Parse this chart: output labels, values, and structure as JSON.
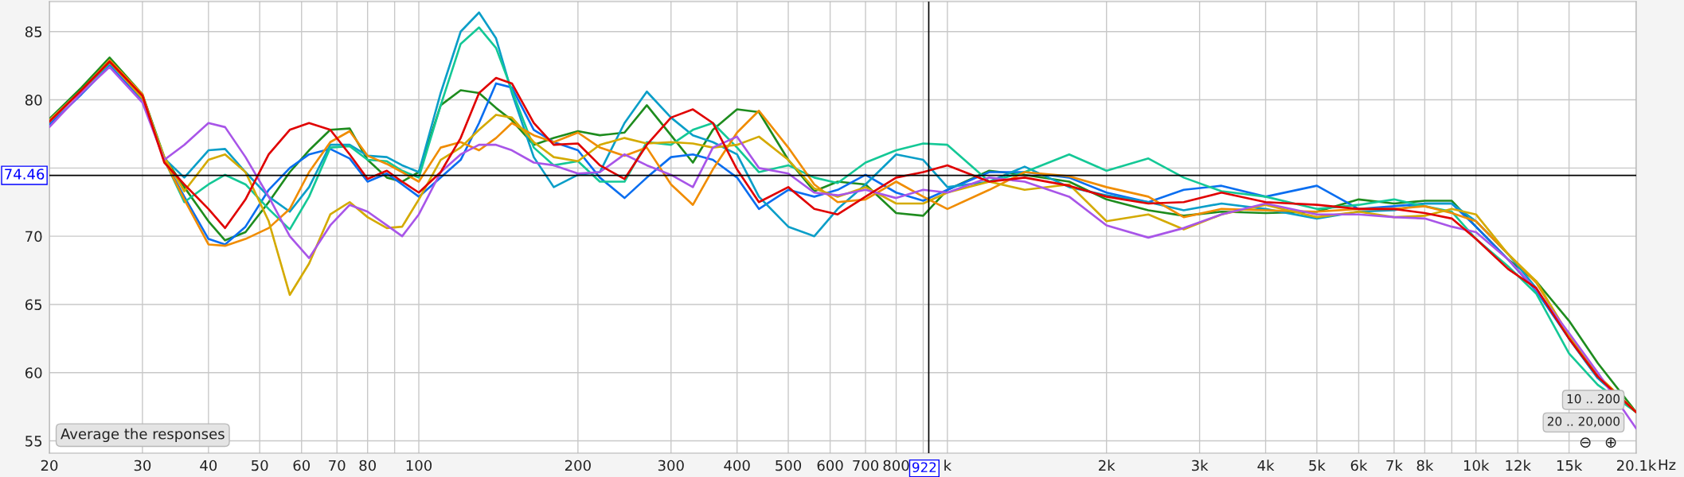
{
  "chart_data": {
    "type": "line",
    "x": [
      20,
      23,
      26,
      30,
      33,
      36,
      40,
      43,
      47,
      52,
      57,
      62,
      68,
      74,
      80,
      87,
      93,
      100,
      110,
      120,
      130,
      140,
      150,
      165,
      180,
      200,
      220,
      245,
      270,
      300,
      330,
      360,
      400,
      440,
      500,
      560,
      620,
      700,
      800,
      900,
      1000,
      1200,
      1400,
      1700,
      2000,
      2400,
      2800,
      3300,
      4000,
      5000,
      6000,
      7000,
      8000,
      9000,
      10000,
      11500,
      13000,
      15000,
      17000,
      20100
    ],
    "series": [
      {
        "color": "#e00000",
        "values": [
          78.4,
          80.7,
          82.8,
          80.3,
          75.4,
          73.8,
          72.0,
          70.6,
          72.7,
          76.0,
          77.8,
          78.3,
          77.8,
          76.0,
          74.2,
          74.8,
          74.0,
          73.2,
          74.7,
          77.2,
          80.5,
          81.6,
          81.2,
          78.3,
          76.7,
          76.8,
          75.2,
          74.2,
          76.7,
          78.7,
          79.3,
          78.3,
          74.9,
          72.5,
          73.6,
          72.0,
          71.6,
          72.9,
          74.3,
          74.7,
          75.2,
          74.0,
          74.3,
          73.7,
          72.9,
          72.4,
          72.5,
          73.2,
          72.5,
          72.3,
          72.0,
          72.0,
          71.7,
          71.3,
          69.8,
          67.6,
          66.2,
          62.5,
          59.7,
          57.1
        ]
      },
      {
        "color": "#1e8c1e",
        "values": [
          78.6,
          80.9,
          83.1,
          80.4,
          75.8,
          73.6,
          71.1,
          69.7,
          70.3,
          72.5,
          74.7,
          76.3,
          77.8,
          77.9,
          75.6,
          74.3,
          74.0,
          74.7,
          79.6,
          80.7,
          80.5,
          79.4,
          78.5,
          76.7,
          77.2,
          77.7,
          77.4,
          77.6,
          79.6,
          77.4,
          75.4,
          77.8,
          79.3,
          79.1,
          75.6,
          73.3,
          74.0,
          73.8,
          71.7,
          71.5,
          73.4,
          74.8,
          74.5,
          74.0,
          72.7,
          71.9,
          71.5,
          71.8,
          71.7,
          71.8,
          72.7,
          72.4,
          72.6,
          72.6,
          70.7,
          68.3,
          66.7,
          63.8,
          60.7,
          57.1
        ]
      },
      {
        "color": "#0a6ef0",
        "values": [
          78.2,
          80.4,
          82.5,
          80.0,
          75.6,
          72.9,
          69.8,
          69.4,
          70.7,
          73.4,
          75.0,
          76.0,
          76.4,
          75.7,
          74.0,
          74.6,
          73.8,
          72.9,
          74.3,
          75.6,
          78.3,
          81.2,
          80.9,
          77.8,
          76.9,
          76.3,
          74.3,
          72.8,
          74.3,
          75.8,
          76.0,
          75.6,
          74.3,
          72.0,
          73.4,
          72.9,
          73.4,
          74.5,
          73.2,
          72.6,
          73.4,
          74.7,
          74.7,
          74.3,
          73.2,
          72.5,
          73.4,
          73.7,
          72.9,
          73.7,
          72.0,
          72.2,
          72.4,
          72.4,
          70.7,
          68.3,
          66.0,
          62.5,
          59.6,
          57.1
        ]
      },
      {
        "color": "#0a9ec8",
        "values": [
          78.5,
          80.7,
          82.7,
          80.3,
          75.7,
          74.3,
          76.3,
          76.4,
          74.7,
          72.9,
          71.8,
          73.6,
          76.7,
          76.7,
          75.9,
          75.8,
          75.2,
          74.7,
          80.5,
          85.0,
          86.4,
          84.5,
          80.5,
          75.8,
          73.6,
          74.5,
          74.7,
          78.3,
          80.6,
          78.7,
          77.4,
          76.9,
          76.0,
          72.9,
          70.7,
          70.0,
          72.0,
          73.8,
          76.0,
          75.6,
          73.6,
          74.0,
          75.1,
          73.6,
          73.0,
          72.5,
          71.9,
          72.4,
          72.0,
          71.3,
          71.8,
          71.9,
          72.4,
          72.4,
          71.1,
          68.7,
          66.2,
          62.5,
          59.6,
          57.1
        ]
      },
      {
        "color": "#14c896",
        "values": [
          78.5,
          80.7,
          82.7,
          80.3,
          75.6,
          72.5,
          73.8,
          74.5,
          73.8,
          72.0,
          70.5,
          72.9,
          76.5,
          76.6,
          75.6,
          75.5,
          74.8,
          74.3,
          79.6,
          84.1,
          85.3,
          83.8,
          80.7,
          76.5,
          75.2,
          75.5,
          74.0,
          74.0,
          76.9,
          76.7,
          77.8,
          78.3,
          76.5,
          74.7,
          75.2,
          74.3,
          73.9,
          75.4,
          76.3,
          76.8,
          76.7,
          74.0,
          74.7,
          76.0,
          74.8,
          75.7,
          74.3,
          73.3,
          72.9,
          72.0,
          72.3,
          72.7,
          72.2,
          71.8,
          69.8,
          67.8,
          65.8,
          61.4,
          59.1,
          57.1
        ]
      },
      {
        "color": "#f08c00",
        "values": [
          78.5,
          80.7,
          82.9,
          80.4,
          75.6,
          72.7,
          69.4,
          69.3,
          69.8,
          70.6,
          72.0,
          74.7,
          76.9,
          77.7,
          75.9,
          75.3,
          74.7,
          74.0,
          76.5,
          76.9,
          76.3,
          77.2,
          78.3,
          77.4,
          76.9,
          77.6,
          76.5,
          75.9,
          76.5,
          73.8,
          72.3,
          74.9,
          77.6,
          79.2,
          76.5,
          73.8,
          72.5,
          72.7,
          74.0,
          72.9,
          72.0,
          73.4,
          74.7,
          74.4,
          73.6,
          72.9,
          71.4,
          72.0,
          71.9,
          71.8,
          72.0,
          72.0,
          72.2,
          71.7,
          71.1,
          68.7,
          66.6,
          62.7,
          59.8,
          57.1
        ]
      },
      {
        "color": "#d4aa00",
        "values": [
          78.4,
          80.7,
          82.8,
          80.1,
          75.8,
          73.3,
          75.6,
          76.0,
          74.7,
          71.1,
          65.7,
          68.0,
          71.6,
          72.5,
          71.4,
          70.6,
          70.7,
          72.7,
          75.6,
          76.5,
          77.8,
          78.9,
          78.7,
          76.9,
          75.8,
          75.5,
          76.7,
          77.2,
          76.8,
          76.9,
          76.8,
          76.5,
          76.7,
          77.3,
          75.6,
          73.5,
          72.9,
          73.6,
          72.4,
          72.4,
          73.2,
          74.0,
          73.4,
          73.8,
          71.1,
          71.6,
          70.5,
          71.6,
          72.3,
          71.4,
          71.8,
          71.4,
          71.5,
          72.0,
          71.6,
          68.7,
          66.7,
          62.7,
          59.8,
          57.1
        ]
      },
      {
        "color": "#a855e8",
        "values": [
          78.0,
          80.5,
          82.4,
          79.8,
          75.6,
          76.7,
          78.3,
          78.0,
          75.8,
          72.9,
          70.0,
          68.4,
          70.8,
          72.3,
          71.8,
          70.8,
          70.0,
          71.6,
          74.7,
          76.0,
          76.7,
          76.7,
          76.3,
          75.4,
          75.2,
          74.6,
          74.7,
          76.0,
          75.2,
          74.5,
          73.6,
          76.5,
          77.3,
          75.0,
          74.6,
          73.2,
          73.0,
          73.4,
          72.8,
          73.4,
          73.2,
          74.3,
          74.0,
          72.9,
          70.8,
          69.9,
          70.6,
          71.6,
          72.4,
          71.6,
          71.6,
          71.4,
          71.3,
          70.7,
          70.3,
          68.3,
          66.1,
          62.9,
          60.0,
          55.9
        ]
      }
    ],
    "log": "x",
    "xlim": [
      20,
      20100
    ],
    "xticks": [
      20,
      30,
      40,
      50,
      60,
      70,
      80,
      {
        "value": 90,
        "label": null
      },
      100,
      200,
      300,
      400,
      500,
      600,
      700,
      800,
      {
        "value": 900,
        "label": null
      },
      {
        "value": 1000,
        "label": "k"
      },
      {
        "value": 2000,
        "label": "2k"
      },
      {
        "value": 3000,
        "label": "3k"
      },
      {
        "value": 4000,
        "label": "4k"
      },
      {
        "value": 5000,
        "label": "5k"
      },
      {
        "value": 6000,
        "label": "6k"
      },
      {
        "value": 7000,
        "label": "7k"
      },
      {
        "value": 8000,
        "label": "8k"
      },
      {
        "value": 9000,
        "label": null
      },
      {
        "value": 10000,
        "label": "10k"
      },
      {
        "value": 12000,
        "label": "12k"
      },
      {
        "value": 15000,
        "label": "15k"
      },
      {
        "value": 20100,
        "label": "20.1k"
      }
    ],
    "xlabel": "Hz",
    "ylim": [
      54.1,
      87.2
    ],
    "yticks": [
      55,
      60,
      65,
      70,
      {
        "value": 75,
        "label": null
      },
      80,
      85
    ],
    "grid": true,
    "line_style": "solid",
    "ref_lines": [
      {
        "axis": "y",
        "value": 74.46,
        "label": "74.46",
        "color": "#000000"
      },
      {
        "axis": "x",
        "value": 922,
        "label": "922",
        "color": "#000000"
      }
    ],
    "annotations": [
      "Average the responses",
      "10 .. 200",
      "20 .. 20,000",
      "⊖",
      "⊕"
    ]
  }
}
